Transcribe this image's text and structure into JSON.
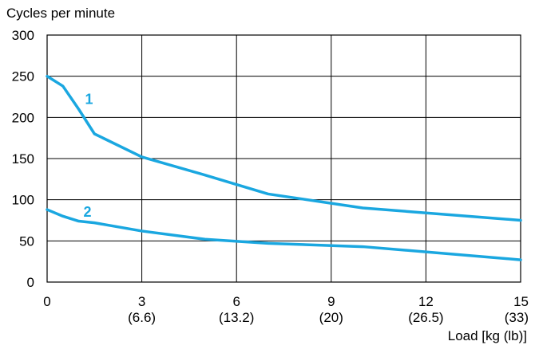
{
  "chart_data": {
    "type": "line",
    "title": "",
    "ylabel": "Cycles per minute",
    "xlabel": "Load [kg (lb)]",
    "xlim": [
      0,
      15
    ],
    "ylim": [
      0,
      300
    ],
    "grid": true,
    "x_ticks": [
      {
        "value": 0,
        "label": "0",
        "sublabel": ""
      },
      {
        "value": 3,
        "label": "3",
        "sublabel": "(6.6)"
      },
      {
        "value": 6,
        "label": "6",
        "sublabel": "(13.2)"
      },
      {
        "value": 9,
        "label": "9",
        "sublabel": "(20)"
      },
      {
        "value": 12,
        "label": "12",
        "sublabel": "(26.5)"
      },
      {
        "value": 15,
        "label": "15",
        "sublabel": "(33)"
      }
    ],
    "y_ticks": [
      0,
      50,
      100,
      150,
      200,
      250,
      300
    ],
    "series": [
      {
        "name": "1",
        "color": "#1aa7e0",
        "x": [
          0,
          0.5,
          1,
          1.5,
          3,
          5,
          7,
          10,
          15
        ],
        "y": [
          250,
          238,
          210,
          180,
          152,
          130,
          107,
          90,
          75
        ],
        "label_at": [
          1.1,
          222
        ]
      },
      {
        "name": "2",
        "color": "#1aa7e0",
        "x": [
          0,
          0.5,
          1,
          1.5,
          3,
          5,
          7,
          10,
          15
        ],
        "y": [
          88,
          80,
          74,
          72,
          62,
          52,
          47,
          43,
          27
        ],
        "label_at": [
          1.05,
          85
        ]
      }
    ]
  }
}
